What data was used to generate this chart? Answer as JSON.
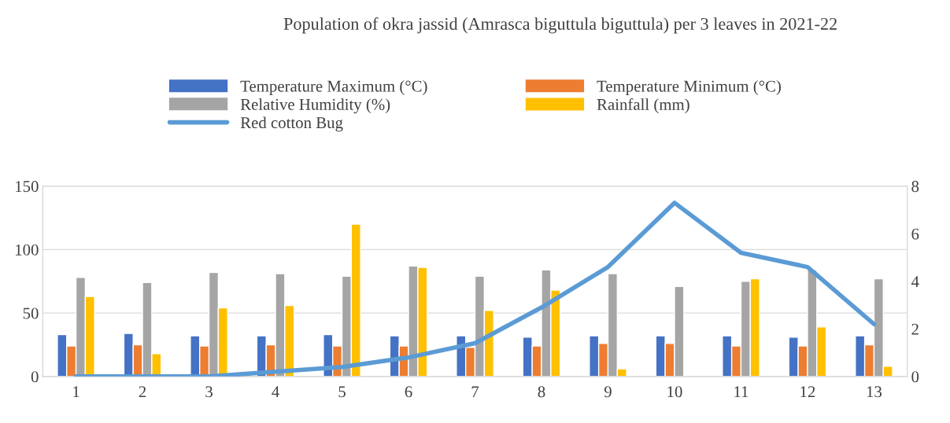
{
  "chart_data": {
    "type": "bar",
    "title": "Population of okra jassid (Amrasca biguttula biguttula) per 3 leaves in 2021-22",
    "categories": [
      "1",
      "2",
      "3",
      "4",
      "5",
      "6",
      "7",
      "8",
      "9",
      "10",
      "11",
      "12",
      "13"
    ],
    "series": [
      {
        "name": "Temperature Maximum (°C)",
        "color": "#4472c4",
        "values": [
          33,
          34,
          32,
          32,
          33,
          32,
          32,
          31,
          32,
          32,
          32,
          31,
          32
        ]
      },
      {
        "name": "Temperature Minimum (°C)",
        "color": "#ed7d31",
        "values": [
          24,
          25,
          24,
          25,
          24,
          24,
          23,
          24,
          26,
          26,
          24,
          24,
          25
        ]
      },
      {
        "name": "Relative Humidity (%)",
        "color": "#a5a5a5",
        "values": [
          78,
          74,
          82,
          81,
          79,
          87,
          79,
          84,
          81,
          71,
          75,
          84,
          77
        ]
      },
      {
        "name": "Rainfall (mm)",
        "color": "#ffc000",
        "values": [
          63,
          18,
          54,
          56,
          120,
          86,
          52,
          68,
          6,
          null,
          77,
          39,
          8
        ]
      },
      {
        "name": "Red cotton Bug",
        "color": "#5b9bd5",
        "type": "line",
        "axis": "y2",
        "values": [
          0,
          0,
          0,
          0.2,
          0.4,
          0.8,
          1.4,
          2.9,
          4.6,
          7.3,
          5.2,
          4.6,
          2.2
        ]
      }
    ],
    "ylim": [
      0,
      150
    ],
    "yticks": [
      0,
      50,
      100,
      150
    ],
    "y2lim": [
      0,
      8
    ],
    "y2ticks": [
      0,
      2,
      4,
      6,
      8
    ],
    "grid": "y",
    "legend": "top"
  }
}
